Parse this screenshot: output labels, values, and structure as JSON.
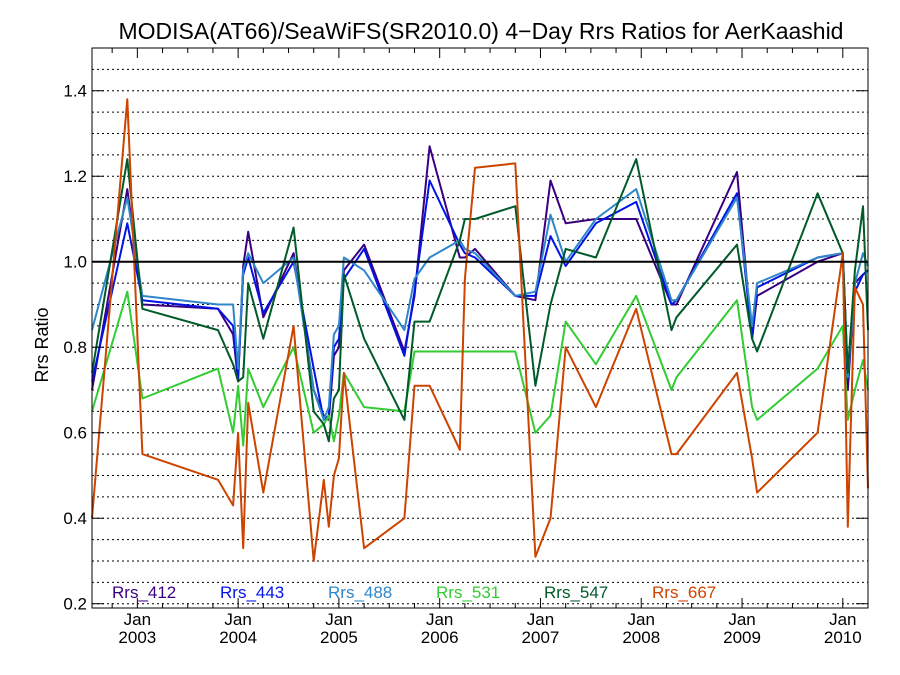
{
  "chart_data": {
    "type": "line",
    "title": "MODISA(AT66)/SeaWiFS(SR2010.0) 4−Day Rrs Ratios for AerKaashid",
    "xlabel": "",
    "ylabel": "Rrs Ratio",
    "xlim": [
      2002.55,
      2010.25
    ],
    "ylim": [
      0.19,
      1.5
    ],
    "yticks": [
      {
        "value": 0.2,
        "label": "0.2"
      },
      {
        "value": 0.4,
        "label": "0.4"
      },
      {
        "value": 0.6,
        "label": "0.6"
      },
      {
        "value": 0.8,
        "label": "0.8"
      },
      {
        "value": 1.0,
        "label": "1.0"
      },
      {
        "value": 1.2,
        "label": "1.2"
      },
      {
        "value": 1.4,
        "label": "1.4"
      }
    ],
    "grid_step": 0.05,
    "reference_line": 1.0,
    "xticks": [
      {
        "value": 2003.0,
        "month": "Jan",
        "year": "2003"
      },
      {
        "value": 2004.0,
        "month": "Jan",
        "year": "2004"
      },
      {
        "value": 2005.0,
        "month": "Jan",
        "year": "2005"
      },
      {
        "value": 2006.0,
        "month": "Jan",
        "year": "2006"
      },
      {
        "value": 2007.0,
        "month": "Jan",
        "year": "2007"
      },
      {
        "value": 2008.0,
        "month": "Jan",
        "year": "2008"
      },
      {
        "value": 2009.0,
        "month": "Jan",
        "year": "2009"
      },
      {
        "value": 2010.0,
        "month": "Jan",
        "year": "2010"
      }
    ],
    "x": [
      2002.55,
      2002.9,
      2003.05,
      2003.8,
      2003.95,
      2004.0,
      2004.05,
      2004.1,
      2004.25,
      2004.55,
      2004.75,
      2004.85,
      2004.9,
      2004.95,
      2005.0,
      2005.05,
      2005.25,
      2005.65,
      2005.75,
      2005.9,
      2006.2,
      2006.25,
      2006.35,
      2006.75,
      2006.95,
      2007.1,
      2007.25,
      2007.55,
      2007.95,
      2008.3,
      2008.35,
      2008.95,
      2009.1,
      2009.15,
      2009.75,
      2010.0,
      2010.05,
      2010.12,
      2010.2,
      2010.25
    ],
    "series": [
      {
        "name": "Rrs_412",
        "color": "#3a0083",
        "values": [
          0.7,
          1.17,
          0.9,
          0.89,
          0.83,
          0.72,
          0.99,
          1.07,
          0.87,
          1.02,
          0.7,
          0.64,
          0.63,
          0.78,
          0.8,
          0.98,
          1.04,
          0.79,
          0.92,
          1.27,
          1.01,
          1.01,
          1.03,
          0.92,
          0.91,
          1.19,
          1.09,
          1.1,
          1.1,
          0.9,
          0.9,
          1.21,
          0.82,
          0.92,
          1.0,
          1.02,
          0.7,
          0.95,
          0.97,
          0.98
        ]
      },
      {
        "name": "Rrs_443",
        "color": "#0014e6",
        "values": [
          0.72,
          1.09,
          0.91,
          0.89,
          0.85,
          0.73,
          0.97,
          1.01,
          0.88,
          1.0,
          0.75,
          0.63,
          0.64,
          0.8,
          0.82,
          0.96,
          1.03,
          0.78,
          0.93,
          1.19,
          1.04,
          1.02,
          1.01,
          0.92,
          0.92,
          1.06,
          0.99,
          1.09,
          1.14,
          0.9,
          0.91,
          1.16,
          0.82,
          0.94,
          1.01,
          1.02,
          0.73,
          0.93,
          0.97,
          0.98
        ]
      },
      {
        "name": "Rrs_488",
        "color": "#2f87c8",
        "values": [
          0.84,
          1.15,
          0.92,
          0.9,
          0.9,
          0.75,
          0.98,
          1.02,
          0.95,
          1.01,
          0.7,
          0.63,
          0.66,
          0.83,
          0.85,
          1.01,
          0.98,
          0.84,
          0.96,
          1.01,
          1.05,
          1.03,
          1.02,
          0.92,
          0.93,
          1.11,
          1.0,
          1.1,
          1.17,
          0.91,
          0.91,
          1.15,
          0.85,
          0.95,
          1.01,
          1.02,
          0.73,
          0.95,
          1.02,
          0.99
        ]
      },
      {
        "name": "Rrs_531",
        "color": "#33cc33",
        "values": [
          0.65,
          0.93,
          0.68,
          0.75,
          0.6,
          0.71,
          0.57,
          0.75,
          0.66,
          0.8,
          0.6,
          0.62,
          0.64,
          0.58,
          0.64,
          0.74,
          0.66,
          0.65,
          0.79,
          0.79,
          0.79,
          0.79,
          0.79,
          0.79,
          0.6,
          0.64,
          0.86,
          0.76,
          0.92,
          0.7,
          0.73,
          0.91,
          0.66,
          0.63,
          0.75,
          0.85,
          0.63,
          0.7,
          0.77,
          0.7
        ]
      },
      {
        "name": "Rrs_547",
        "color": "#005a2a",
        "values": [
          0.74,
          1.24,
          0.89,
          0.84,
          0.76,
          0.72,
          0.73,
          0.95,
          0.82,
          1.08,
          0.65,
          0.62,
          0.58,
          0.68,
          0.7,
          0.97,
          0.82,
          0.63,
          0.86,
          0.86,
          1.05,
          1.1,
          1.1,
          1.13,
          0.71,
          0.9,
          1.03,
          1.01,
          1.24,
          0.84,
          0.87,
          1.04,
          0.82,
          0.79,
          1.16,
          1.02,
          0.74,
          0.98,
          1.13,
          0.84
        ]
      },
      {
        "name": "Rrs_667",
        "color": "#cc4400",
        "values": [
          0.4,
          1.38,
          0.55,
          0.49,
          0.43,
          0.6,
          0.33,
          0.67,
          0.46,
          0.85,
          0.3,
          0.49,
          0.38,
          0.5,
          0.54,
          0.74,
          0.33,
          0.4,
          0.71,
          0.71,
          0.56,
          0.96,
          1.22,
          1.23,
          0.31,
          0.4,
          0.8,
          0.66,
          0.89,
          0.55,
          0.55,
          0.74,
          0.54,
          0.46,
          0.6,
          1.02,
          0.38,
          0.94,
          0.9,
          0.47
        ]
      }
    ],
    "legend_position": "bottom-inside"
  }
}
